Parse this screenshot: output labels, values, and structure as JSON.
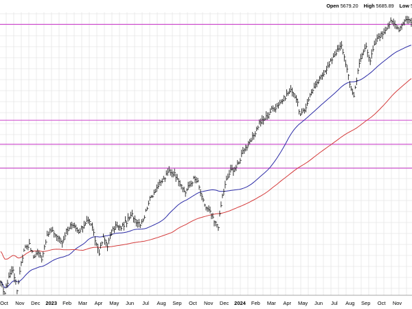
{
  "stats": {
    "open_label": "Open",
    "open_value": "5679.20",
    "high_label": "High",
    "high_value": "5685.89",
    "low_label": "Low",
    "low_value": "5"
  },
  "chart_data": {
    "type": "candlestick-line",
    "x_labels": [
      "Oct",
      "Nov",
      "Dec",
      "2023",
      "Feb",
      "Mar",
      "Apr",
      "May",
      "Jun",
      "Jul",
      "Aug",
      "Sep",
      "Oct",
      "Nov",
      "Dec",
      "2024",
      "Feb",
      "Mar",
      "Apr",
      "May",
      "Jun",
      "Jul",
      "Aug",
      "Sep",
      "Oct",
      "Nov"
    ],
    "x_bold": [
      "2023",
      "2024"
    ],
    "grid": true,
    "price_series_anchors": [
      [
        0,
        3640
      ],
      [
        3,
        3560
      ],
      [
        6,
        3700
      ],
      [
        9,
        3760
      ],
      [
        12,
        3580
      ],
      [
        15,
        3820
      ],
      [
        18,
        3950
      ],
      [
        21,
        3960
      ],
      [
        24,
        3860
      ],
      [
        27,
        3900
      ],
      [
        30,
        3850
      ],
      [
        33,
        4000
      ],
      [
        36,
        4080
      ],
      [
        39,
        4060
      ],
      [
        42,
        4020
      ],
      [
        45,
        3980
      ],
      [
        48,
        4080
      ],
      [
        51,
        4120
      ],
      [
        54,
        4100
      ],
      [
        57,
        4060
      ],
      [
        60,
        4110
      ],
      [
        63,
        4170
      ],
      [
        66,
        4140
      ],
      [
        69,
        4000
      ],
      [
        72,
        3900
      ],
      [
        75,
        4020
      ],
      [
        78,
        3960
      ],
      [
        81,
        4060
      ],
      [
        84,
        4120
      ],
      [
        87,
        4100
      ],
      [
        90,
        4130
      ],
      [
        93,
        4170
      ],
      [
        96,
        4210
      ],
      [
        99,
        4160
      ],
      [
        102,
        4140
      ],
      [
        105,
        4200
      ],
      [
        108,
        4320
      ],
      [
        111,
        4380
      ],
      [
        114,
        4440
      ],
      [
        117,
        4480
      ],
      [
        120,
        4520
      ],
      [
        123,
        4580
      ],
      [
        126,
        4560
      ],
      [
        129,
        4530
      ],
      [
        132,
        4440
      ],
      [
        135,
        4400
      ],
      [
        138,
        4460
      ],
      [
        141,
        4510
      ],
      [
        144,
        4480
      ],
      [
        147,
        4350
      ],
      [
        150,
        4270
      ],
      [
        153,
        4230
      ],
      [
        156,
        4150
      ],
      [
        159,
        4120
      ],
      [
        162,
        4370
      ],
      [
        165,
        4500
      ],
      [
        168,
        4580
      ],
      [
        171,
        4600
      ],
      [
        174,
        4640
      ],
      [
        177,
        4760
      ],
      [
        180,
        4780
      ],
      [
        183,
        4830
      ],
      [
        186,
        4900
      ],
      [
        189,
        4980
      ],
      [
        192,
        5000
      ],
      [
        195,
        5040
      ],
      [
        198,
        5090
      ],
      [
        201,
        5110
      ],
      [
        204,
        5150
      ],
      [
        207,
        5180
      ],
      [
        210,
        5230
      ],
      [
        213,
        5250
      ],
      [
        216,
        5180
      ],
      [
        219,
        5040
      ],
      [
        222,
        5080
      ],
      [
        225,
        5180
      ],
      [
        228,
        5260
      ],
      [
        231,
        5300
      ],
      [
        234,
        5360
      ],
      [
        237,
        5420
      ],
      [
        240,
        5460
      ],
      [
        243,
        5540
      ],
      [
        246,
        5580
      ],
      [
        249,
        5620
      ],
      [
        252,
        5480
      ],
      [
        255,
        5300
      ],
      [
        258,
        5200
      ],
      [
        261,
        5420
      ],
      [
        264,
        5550
      ],
      [
        267,
        5620
      ],
      [
        270,
        5500
      ],
      [
        273,
        5620
      ],
      [
        276,
        5700
      ],
      [
        279,
        5720
      ],
      [
        282,
        5780
      ],
      [
        285,
        5820
      ],
      [
        288,
        5800
      ],
      [
        291,
        5760
      ],
      [
        294,
        5820
      ],
      [
        297,
        5850
      ],
      [
        300,
        5820
      ]
    ],
    "moving_averages": [
      {
        "color": "#2a2aa6",
        "window": 50
      },
      {
        "color": "#d43a3a",
        "window": 200
      }
    ],
    "horizontal_levels": [
      5800,
      5000,
      4800,
      4600
    ],
    "colors": {
      "price": "#000000",
      "grid": "#dedede",
      "levels": "#cc44cc"
    }
  }
}
